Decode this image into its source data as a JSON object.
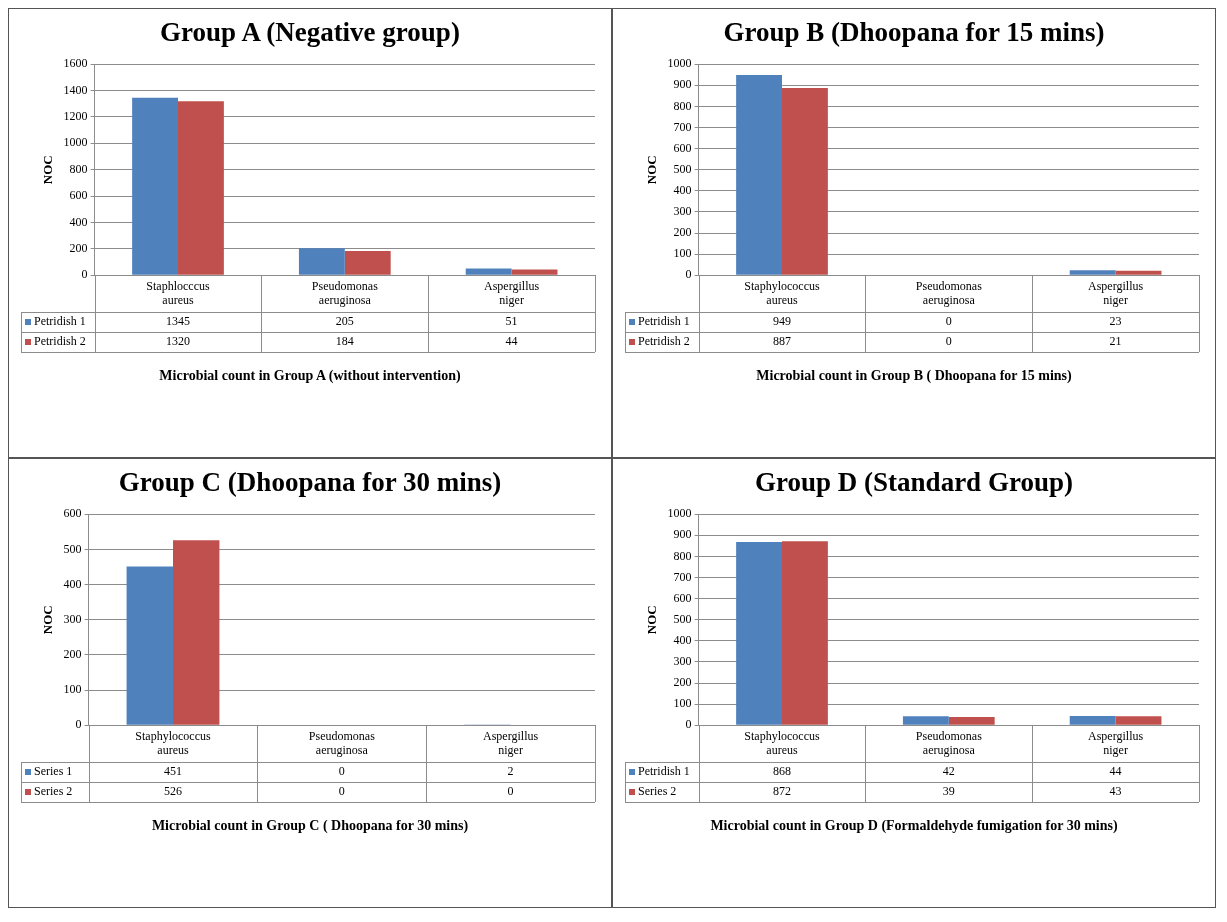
{
  "chart_data": [
    {
      "type": "bar",
      "legend": "bottom left",
      "title": "Group A (Negative group)",
      "ylabel": "NOC",
      "categories": [
        "Staphlocccus aureus",
        "Pseudomonas aeruginosa",
        "Aspergillus niger"
      ],
      "ylim": [
        0,
        1600
      ],
      "yticks": [
        0,
        200,
        400,
        600,
        800,
        1000,
        1200,
        1400,
        1600
      ],
      "grid": "y",
      "data_labels": true,
      "series": [
        {
          "name": "Petridish 1",
          "color": "#4f81bd",
          "values": [
            1345,
            205,
            51
          ]
        },
        {
          "name": "Petridish 2",
          "color": "#c0504d",
          "values": [
            1320,
            184,
            44
          ]
        }
      ],
      "annotations": [
        "Microbial count in Group A (without intervention)"
      ]
    },
    {
      "type": "bar",
      "legend": "bottom left",
      "title": "Group B (Dhoopana for 15 mins)",
      "ylabel": "NOC",
      "categories": [
        "Staphylococcus aureus",
        "Pseudomonas aeruginosa",
        "Aspergillus niger"
      ],
      "ylim": [
        0,
        1000
      ],
      "yticks": [
        0,
        100,
        200,
        300,
        400,
        500,
        600,
        700,
        800,
        900,
        1000
      ],
      "grid": "y",
      "data_labels": true,
      "series": [
        {
          "name": "Petridish 1",
          "color": "#4f81bd",
          "values": [
            949,
            0,
            23
          ]
        },
        {
          "name": "Petridish 2",
          "color": "#c0504d",
          "values": [
            887,
            0,
            21
          ]
        }
      ],
      "annotations": [
        "Microbial count in Group B ( Dhoopana for 15 mins)"
      ]
    },
    {
      "type": "bar",
      "legend": "bottom left",
      "title": "Group C (Dhoopana for 30 mins)",
      "ylabel": "NOC",
      "categories": [
        "Staphylococcus aureus",
        "Pseudomonas aeruginosa",
        "Aspergillus niger"
      ],
      "ylim": [
        0,
        600
      ],
      "yticks": [
        0,
        100,
        200,
        300,
        400,
        500,
        600
      ],
      "grid": "y",
      "data_labels": true,
      "series": [
        {
          "name": "Series 1",
          "color": "#4f81bd",
          "values": [
            451,
            0,
            2
          ]
        },
        {
          "name": "Series 2",
          "color": "#c0504d",
          "values": [
            526,
            0,
            0
          ]
        }
      ],
      "annotations": [
        "Microbial count in Group C ( Dhoopana for 30 mins)"
      ]
    },
    {
      "type": "bar",
      "legend": "bottom left",
      "title": "Group D (Standard Group)",
      "ylabel": "NOC",
      "categories": [
        "Staphylococcus aureus",
        "Pseudomonas aeruginosa",
        "Aspergillus niger"
      ],
      "ylim": [
        0,
        1000
      ],
      "yticks": [
        0,
        100,
        200,
        300,
        400,
        500,
        600,
        700,
        800,
        900,
        1000
      ],
      "grid": "y",
      "data_labels": true,
      "series": [
        {
          "name": "Petridish 1",
          "color": "#4f81bd",
          "values": [
            868,
            42,
            44
          ]
        },
        {
          "name": "Series 2",
          "color": "#c0504d",
          "values": [
            872,
            39,
            43
          ]
        }
      ],
      "annotations": [
        "Microbial count in Group D (Formaldehyde fumigation for 30 mins)"
      ]
    }
  ]
}
